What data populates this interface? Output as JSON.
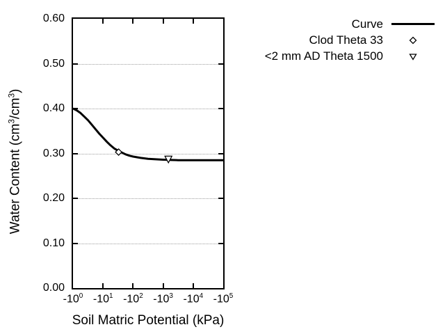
{
  "colors": {
    "background": "#ffffff",
    "axis": "#000000",
    "text": "#000000",
    "grid": "#9e9e9e",
    "marker_fill": "#ffffff"
  },
  "legend": {
    "items": [
      {
        "label": "Curve",
        "sample": "line"
      },
      {
        "label": "Clod Theta 33",
        "sample": "diamond"
      },
      {
        "label": "<2 mm AD Theta 1500",
        "sample": "triangle-down"
      }
    ]
  },
  "chart_data": {
    "type": "line",
    "xlabel": "Soil Matric Potential (kPa)",
    "ylabel": "Water Content (cm^3/cm^3)",
    "x_scale": "negative-log10",
    "xlim_log10": [
      0,
      5
    ],
    "ylim": [
      0,
      0.6
    ],
    "x_tick_labels": [
      "-10^0",
      "-10^1",
      "-10^2",
      "-10^3",
      "-10^4",
      "-10^5"
    ],
    "x_tick_log10": [
      0,
      1,
      2,
      3,
      4,
      5
    ],
    "y_ticks": [
      0.0,
      0.1,
      0.2,
      0.3,
      0.4,
      0.5,
      0.6
    ],
    "y_tick_labels": [
      "0.00",
      "0.10",
      "0.20",
      "0.30",
      "0.40",
      "0.50",
      "0.60"
    ],
    "grid": {
      "horizontal_dotted_at": [
        0.1,
        0.2,
        0.3,
        0.4,
        0.5
      ],
      "color": "#9e9e9e"
    },
    "legend_position": "outside-top-right",
    "series": [
      {
        "name": "Curve",
        "type": "line",
        "color": "#000000",
        "width": 3,
        "points": [
          [
            -1,
            0.4
          ],
          [
            -1.33,
            0.396
          ],
          [
            -1.78,
            0.39
          ],
          [
            -2.37,
            0.382
          ],
          [
            -3.16,
            0.374
          ],
          [
            -4.22,
            0.364
          ],
          [
            -5.62,
            0.354
          ],
          [
            -7.5,
            0.344
          ],
          [
            -10,
            0.335
          ],
          [
            -13.3,
            0.326
          ],
          [
            -17.8,
            0.318
          ],
          [
            -23.7,
            0.311
          ],
          [
            -31.6,
            0.306
          ],
          [
            -42.2,
            0.302
          ],
          [
            -56.2,
            0.298
          ],
          [
            -75,
            0.295
          ],
          [
            -100,
            0.293
          ],
          [
            -178,
            0.29
          ],
          [
            -316,
            0.288
          ],
          [
            -562,
            0.287
          ],
          [
            -1000,
            0.286
          ],
          [
            -1780,
            0.2855
          ],
          [
            -3160,
            0.285
          ],
          [
            -10000,
            0.285
          ],
          [
            -31600,
            0.285
          ],
          [
            -100000,
            0.285
          ]
        ]
      }
    ],
    "markers": [
      {
        "name": "Clod Theta 33",
        "marker": "diamond",
        "kpa": -33,
        "theta": 0.303
      },
      {
        "name": "<2 mm AD Theta 1500",
        "marker": "triangle-down",
        "kpa": -1500,
        "theta": 0.287
      }
    ]
  }
}
